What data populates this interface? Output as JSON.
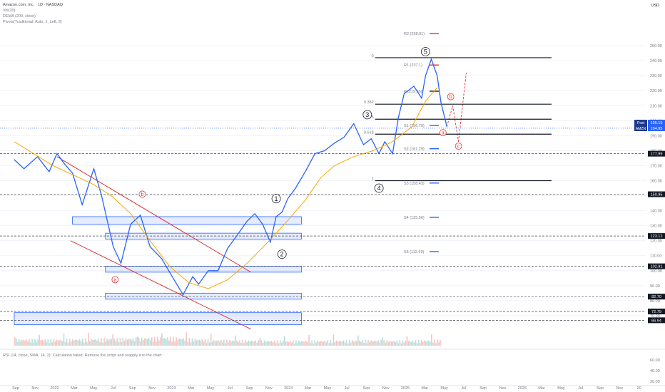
{
  "header": {
    "ticker": "Amazon.com, Inc. · 1D · NASDAQ",
    "indicators": [
      "Vol(20)",
      "DEMA (200, close)",
      "Pivots(Traditional, Auto, 1, Left, 3)"
    ],
    "currency": "USD"
  },
  "rsi_message": "RSI (14, close, SMA, 14, 2): Calculation failed. Remove the script and reapply it to the chart.",
  "colors": {
    "price": "#2962ff",
    "dema": "#f7a600",
    "trendline": "#e03131",
    "zone": "#2962ff",
    "vol_up": "#26a69a",
    "vol_down": "#ef5350",
    "resistance": "#e03131",
    "pivot": "#131722",
    "support": "#2962ff"
  },
  "chart_data": {
    "type": "line",
    "title": "Amazon.com, Inc. · 1D · NASDAQ",
    "ylim": [
      50,
      270
    ],
    "y_ticks": [
      250,
      240,
      230,
      220,
      210,
      200,
      190,
      180,
      170,
      160,
      150,
      140,
      130,
      120,
      110,
      100,
      90,
      80,
      70
    ],
    "rsi_ticks": [
      "60.00",
      "40.00",
      "20.00"
    ],
    "x_ticks": [
      "Sep",
      "Nov",
      "2022",
      "Mar",
      "May",
      "Jul",
      "Sep",
      "Nov",
      "2023",
      "Mar",
      "May",
      "Jul",
      "Sep",
      "Nov",
      "2024",
      "Mar",
      "May",
      "Jul",
      "Sep",
      "Nov",
      "2025",
      "Mar",
      "May",
      "Jul",
      "Sep",
      "Nov",
      "2026",
      "Mar",
      "May",
      "Jul",
      "Sep",
      "Nov",
      "20"
    ],
    "x_range": [
      0,
      32
    ],
    "series": [
      {
        "name": "",
        "role": "price",
        "x": [
          0,
          0.5,
          1.2,
          1.8,
          2.2,
          2.6,
          3.0,
          3.5,
          4.1,
          4.5,
          5.1,
          5.5,
          6.0,
          6.5,
          7.0,
          7.6,
          8.1,
          8.7,
          9.2,
          9.5,
          10.0,
          10.5,
          11.0,
          11.4,
          12.0,
          12.4,
          12.8,
          13.2,
          13.5,
          13.8,
          14.1,
          14.5,
          15.0,
          15.5,
          16.0,
          16.5,
          17.0,
          17.5,
          18.0,
          18.4,
          18.8,
          19.1,
          19.5,
          19.8,
          20.1,
          20.6,
          21.0,
          21.2,
          21.5,
          21.8,
          22.0,
          22.3
        ],
        "y": [
          174,
          168,
          176,
          166,
          178,
          171,
          165,
          144,
          168,
          150,
          116,
          105,
          131,
          137,
          116,
          108,
          97,
          84,
          96,
          91,
          100,
          100,
          115,
          122,
          133,
          138,
          131,
          119,
          136,
          139,
          148,
          155,
          166,
          178,
          180,
          185,
          189,
          198,
          184,
          188,
          178,
          186,
          178,
          202,
          218,
          223,
          215,
          230,
          241,
          230,
          212,
          196
        ]
      },
      {
        "name": "DEMA (200, close)",
        "role": "dema",
        "x": [
          0,
          1.0,
          2.0,
          3.0,
          4.0,
          5.0,
          6.0,
          7.0,
          8.0,
          9.0,
          10.0,
          11.0,
          12.0,
          13.0,
          14.0,
          15.0,
          15.8,
          16.5,
          17.5,
          18.5,
          19.5,
          20.5,
          21.2,
          21.8
        ],
        "y": [
          186,
          178,
          170,
          164,
          158,
          150,
          138,
          120,
          103,
          92,
          88,
          94,
          105,
          118,
          132,
          147,
          162,
          170,
          176,
          180,
          186,
          196,
          213,
          222
        ]
      },
      {
        "name": "Vol(20)",
        "role": "volume",
        "x": [
          0,
          2,
          4,
          6,
          8,
          10,
          12,
          14,
          16,
          18,
          20,
          22
        ],
        "y": [
          60,
          58,
          65,
          70,
          80,
          55,
          50,
          45,
          48,
          52,
          46,
          55
        ]
      }
    ],
    "price_tags": [
      {
        "value": "195.15",
        "label": "Post"
      },
      {
        "value": "194.95",
        "label": "AMZN"
      },
      {
        "value": "177.99"
      },
      {
        "value": "150.95"
      },
      {
        "value": "123.12"
      },
      {
        "value": "102.91"
      },
      {
        "value": "82.70"
      },
      {
        "value": "72.79"
      },
      {
        "value": "66.94"
      }
    ],
    "pivots": [
      {
        "label": "R2 (258.01)",
        "value": 258.01
      },
      {
        "label": "R1 (237.1)",
        "value": 237.1
      },
      {
        "label": "P (219.65)",
        "value": 219.65
      },
      {
        "label": "S1 (196.79)",
        "value": 196.79
      },
      {
        "label": "S2 (181.29)",
        "value": 181.29
      },
      {
        "label": "S3 (158.43)",
        "value": 158.43
      },
      {
        "label": "S4 (135.56)",
        "value": 135.56
      },
      {
        "label": "S5 (112.69)",
        "value": 112.69
      }
    ],
    "fib_levels": [
      {
        "label": "0",
        "value": 242
      },
      {
        "label": "0.382",
        "value": 211
      },
      {
        "label": "0.5",
        "value": 201
      },
      {
        "label": "0.618",
        "value": 191
      },
      {
        "label": "1",
        "value": 160
      }
    ],
    "wave_labels": [
      {
        "label": "1",
        "x": 13.5,
        "y": 148
      },
      {
        "label": "2",
        "x": 13.8,
        "y": 111
      },
      {
        "label": "3",
        "x": 18.2,
        "y": 204
      },
      {
        "label": "4",
        "x": 18.8,
        "y": 155
      },
      {
        "label": "5",
        "x": 21.2,
        "y": 246
      }
    ],
    "corrective_labels": [
      {
        "label": "a",
        "x": 5.2,
        "y": 94
      },
      {
        "label": "b",
        "x": 6.6,
        "y": 151
      },
      {
        "label": "a",
        "x": 22.1,
        "y": 192
      },
      {
        "label": "b",
        "x": 22.5,
        "y": 216
      },
      {
        "label": "c",
        "x": 22.9,
        "y": 183
      }
    ],
    "zones": [
      {
        "x": [
          3.0,
          14.8
        ],
        "y": [
          131,
          136
        ]
      },
      {
        "x": [
          4.7,
          14.8
        ],
        "y": [
          121,
          125
        ]
      },
      {
        "x": [
          4.7,
          14.8
        ],
        "y": [
          99,
          103
        ]
      },
      {
        "x": [
          4.7,
          14.8
        ],
        "y": [
          81,
          85
        ]
      },
      {
        "x": [
          0,
          14.8
        ],
        "y": [
          64,
          72
        ]
      }
    ]
  }
}
